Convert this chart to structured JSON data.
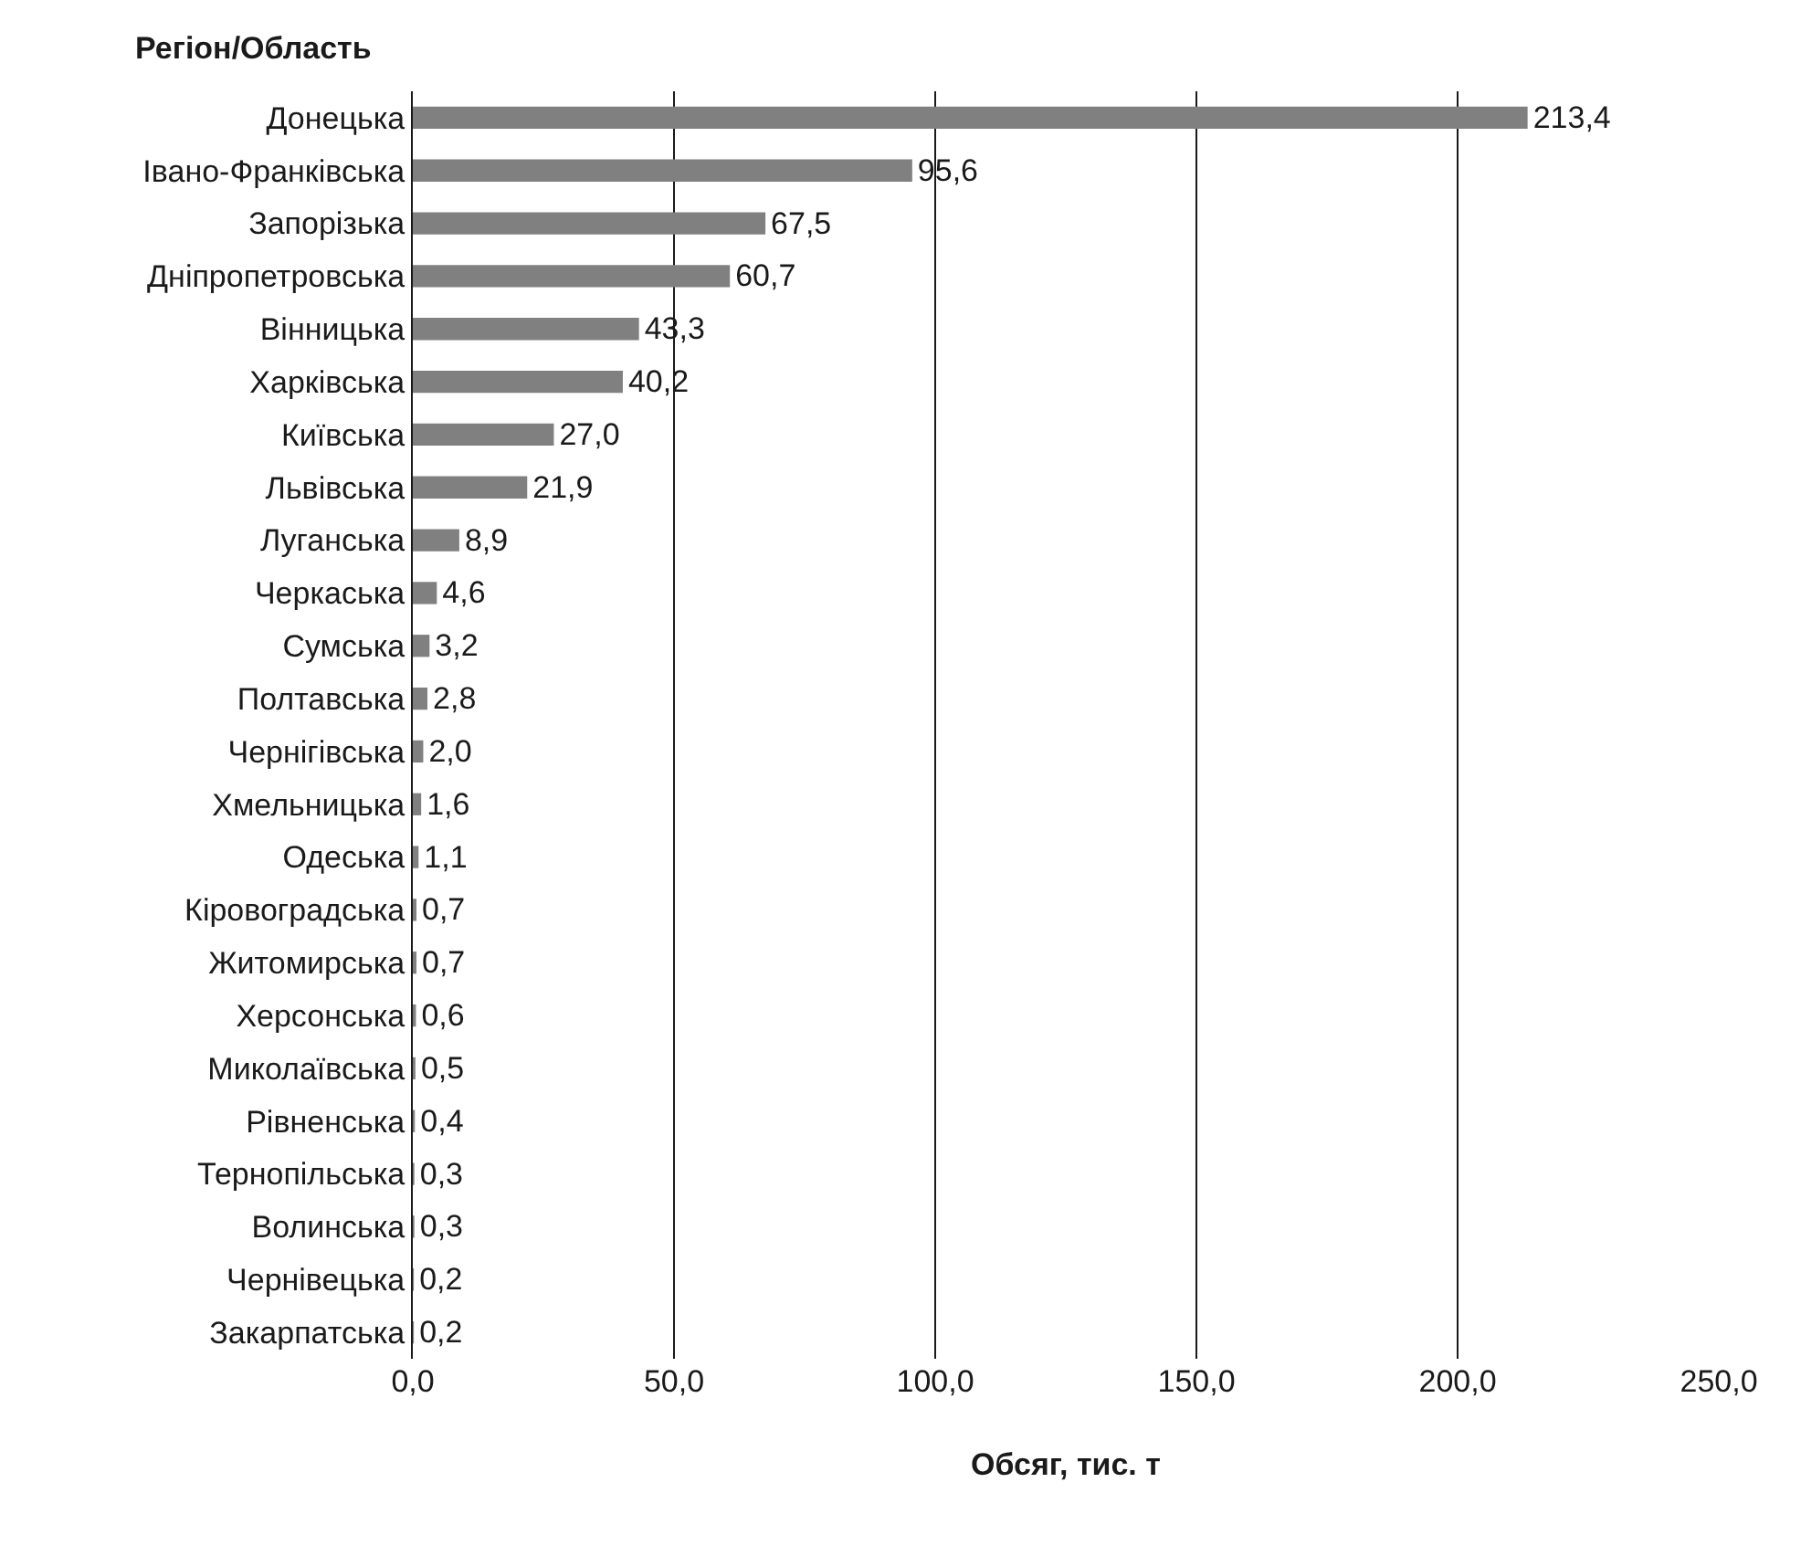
{
  "chart_data": {
    "type": "bar",
    "orientation": "horizontal",
    "xlabel": "Обсяг, тис. т",
    "ylabel": "Регіон/Область",
    "categories": [
      "Донецька",
      "Івано-Франківська",
      "Запорізька",
      "Дніпропетровська",
      "Вінницька",
      "Харківська",
      "Київська",
      "Львівська",
      "Луганська",
      "Черкаська",
      "Сумська",
      "Полтавська",
      "Чернігівська",
      "Хмельницька",
      "Одеська",
      "Кіровоградська",
      "Житомирська",
      "Херсонська",
      "Миколаївська",
      "Рівненська",
      "Тернопільська",
      "Волинська",
      "Чернівецька",
      "Закарпатська"
    ],
    "values": [
      213.4,
      95.6,
      67.5,
      60.7,
      43.3,
      40.2,
      27.0,
      21.9,
      8.9,
      4.6,
      3.2,
      2.8,
      2.0,
      1.6,
      1.1,
      0.7,
      0.7,
      0.6,
      0.5,
      0.4,
      0.3,
      0.3,
      0.2,
      0.2
    ],
    "value_labels": [
      "213,4",
      "95,6",
      "67,5",
      "60,7",
      "43,3",
      "40,2",
      "27,0",
      "21,9",
      "8,9",
      "4,6",
      "3,2",
      "2,8",
      "2,0",
      "1,6",
      "1,1",
      "0,7",
      "0,7",
      "0,6",
      "0,5",
      "0,4",
      "0,3",
      "0,3",
      "0,2",
      "0,2"
    ],
    "color": "#808080",
    "xlim": [
      0,
      250
    ],
    "xticks": [
      {
        "value": 0,
        "label": "0,0"
      },
      {
        "value": 50,
        "label": "50,0"
      },
      {
        "value": 100,
        "label": "100,0"
      },
      {
        "value": 150,
        "label": "150,0"
      },
      {
        "value": 200,
        "label": "200,0"
      },
      {
        "value": 250,
        "label": "250,0"
      }
    ],
    "grid": "x"
  }
}
